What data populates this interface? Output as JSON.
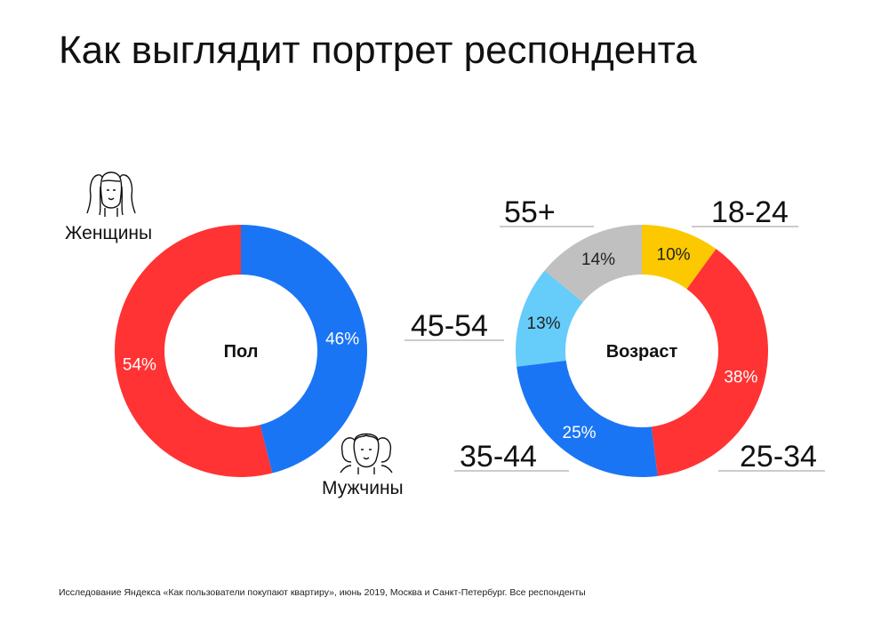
{
  "title": "Как выглядит портрет респондента",
  "footnote": "Исследование Яндекса «Как пользователи покупают квартиру», июнь 2019, Москва и Санкт-Петербург. Все респонденты",
  "chart_data": [
    {
      "type": "pie",
      "title": "Пол",
      "slices": [
        {
          "name": "Мужчины",
          "value": 46,
          "label": "46%",
          "color": "#1a75f5"
        },
        {
          "name": "Женщины",
          "value": 54,
          "label": "54%",
          "color": "#ff3333"
        }
      ],
      "icons": [
        "women-group-icon",
        "men-group-icon"
      ]
    },
    {
      "type": "pie",
      "title": "Возраст",
      "slices": [
        {
          "name": "18-24",
          "value": 10,
          "label": "10%",
          "color": "#fcc800"
        },
        {
          "name": "25-34",
          "value": 38,
          "label": "38%",
          "color": "#ff3333"
        },
        {
          "name": "35-44",
          "value": 25,
          "label": "25%",
          "color": "#1a75f5"
        },
        {
          "name": "45-54",
          "value": 13,
          "label": "13%",
          "color": "#66ccfa"
        },
        {
          "name": "55+",
          "value": 14,
          "label": "14%",
          "color": "#c0c0c0"
        }
      ]
    }
  ]
}
